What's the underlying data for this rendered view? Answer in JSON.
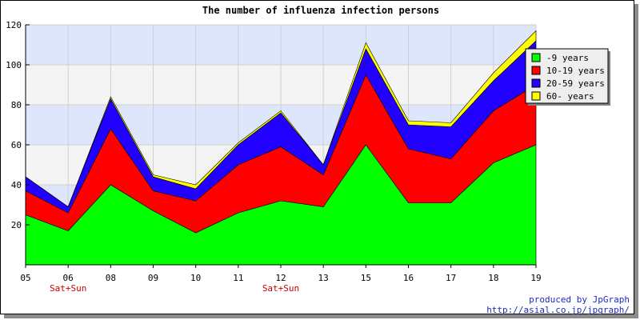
{
  "chart_data": {
    "type": "area",
    "stacked": true,
    "title": "The number of influenza infection persons",
    "categories": [
      "05",
      "06",
      "08",
      "09",
      "10",
      "11",
      "12",
      "13",
      "15",
      "16",
      "17",
      "18",
      "19"
    ],
    "sublabels": [
      "",
      "Sat+Sun",
      "",
      "",
      "",
      "",
      "Sat+Sun",
      "",
      "",
      "",
      "",
      "",
      ""
    ],
    "series": [
      {
        "name": "-9 years",
        "color": "#00ff00",
        "values": [
          25,
          17,
          40,
          27,
          16,
          26,
          32,
          29,
          60,
          31,
          31,
          51,
          60
        ]
      },
      {
        "name": "10-19 years",
        "color": "#ff0000",
        "values": [
          12,
          9,
          28,
          10,
          16,
          24,
          27,
          16,
          35,
          27,
          22,
          26,
          30
        ]
      },
      {
        "name": "20-59 years",
        "color": "#2200ff",
        "values": [
          7,
          3,
          15,
          7,
          6,
          10,
          17,
          5,
          13,
          12,
          16,
          15,
          22
        ]
      },
      {
        "name": "60- years",
        "color": "#ffff00",
        "values": [
          0,
          0,
          1,
          1,
          2,
          1,
          1,
          0,
          3,
          2,
          2,
          4,
          5
        ]
      }
    ],
    "ylim": [
      0,
      120
    ],
    "yticks": [
      20,
      40,
      60,
      80,
      100,
      120
    ],
    "grid": true,
    "band_colors": [
      "#f4f4f4",
      "#dde6fb"
    ],
    "legend": "top-right",
    "footer": [
      "produced by JpGraph",
      "http://asial.co.jp/jpgraph/"
    ]
  }
}
